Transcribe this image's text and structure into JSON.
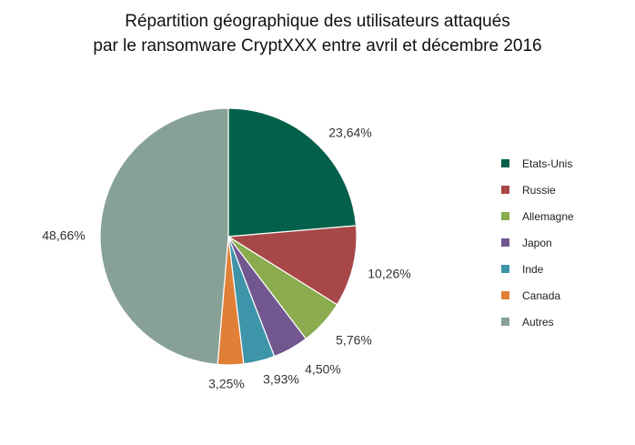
{
  "chart_data": {
    "type": "pie",
    "title": "Répartition géographique des utilisateurs attaqués",
    "subtitle": "par le ransomware CryptXXX entre avril et décembre 2016",
    "legend_position": "right",
    "slices": [
      {
        "name": "Etats-Unis",
        "value": 23.64,
        "label": "23,64%",
        "color": "#03604a"
      },
      {
        "name": "Russie",
        "value": 10.26,
        "label": "10,26%",
        "color": "#a84747"
      },
      {
        "name": "Allemagne",
        "value": 5.76,
        "label": "5,76%",
        "color": "#8aab4e"
      },
      {
        "name": "Japon",
        "value": 4.5,
        "label": "4,50%",
        "color": "#72578f"
      },
      {
        "name": "Inde",
        "value": 3.93,
        "label": "3,93%",
        "color": "#3e94a8"
      },
      {
        "name": "Canada",
        "value": 3.25,
        "label": "3,25%",
        "color": "#e07f36"
      },
      {
        "name": "Autres",
        "value": 48.66,
        "label": "48,66%",
        "color": "#87a196"
      }
    ]
  }
}
